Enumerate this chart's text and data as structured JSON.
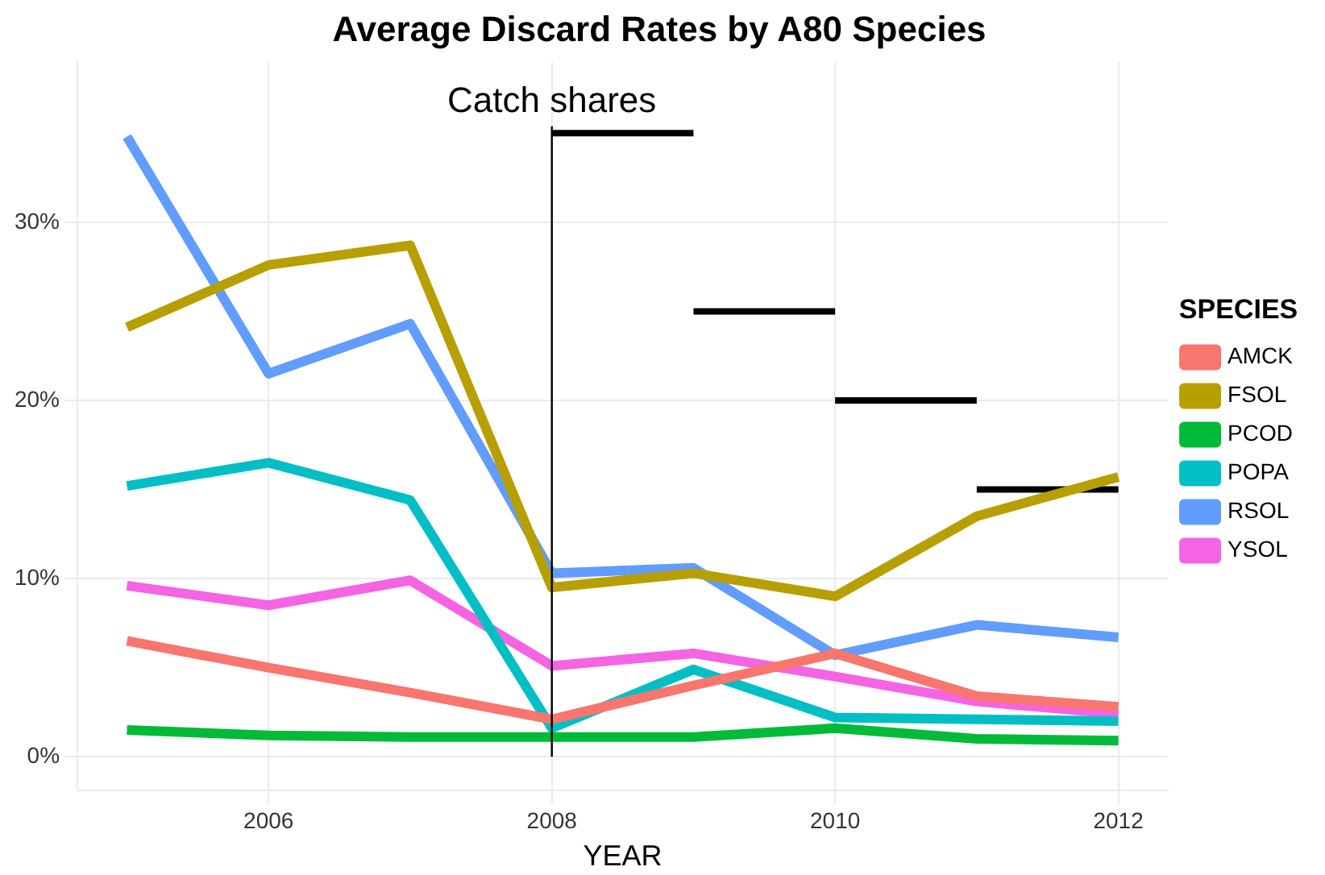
{
  "chart_data": {
    "type": "line",
    "title": "Average Discard Rates by A80 Species",
    "xlabel": "YEAR",
    "legend_title": "SPECIES",
    "x": [
      2005,
      2006,
      2007,
      2008,
      2009,
      2010,
      2011,
      2012
    ],
    "series": [
      {
        "name": "AMCK",
        "color": "#f8766d",
        "values": [
          6.5,
          5.0,
          3.6,
          2.1,
          4.0,
          5.8,
          3.4,
          2.8
        ]
      },
      {
        "name": "FSOL",
        "color": "#b79f00",
        "values": [
          24.1,
          27.6,
          28.7,
          9.5,
          10.3,
          9.0,
          13.5,
          15.7
        ]
      },
      {
        "name": "PCOD",
        "color": "#00ba38",
        "values": [
          1.5,
          1.2,
          1.1,
          1.1,
          1.1,
          1.6,
          1.0,
          0.9
        ]
      },
      {
        "name": "POPA",
        "color": "#00bfc4",
        "values": [
          15.2,
          16.5,
          14.4,
          1.6,
          4.9,
          2.2,
          2.1,
          2.0
        ]
      },
      {
        "name": "RSOL",
        "color": "#619cff",
        "values": [
          34.8,
          21.5,
          24.3,
          10.3,
          10.6,
          5.7,
          7.4,
          6.7
        ]
      },
      {
        "name": "YSOL",
        "color": "#f564e3",
        "values": [
          9.6,
          8.5,
          9.9,
          5.1,
          5.8,
          4.5,
          3.1,
          2.4
        ]
      },
      {
        "type": "line",
        "color": "#000000",
        "x": [
          2008,
          2009
        ],
        "values": [
          35,
          35
        ]
      },
      {
        "type": "line",
        "color": "#000000",
        "x": [
          2009,
          2010
        ],
        "values": [
          25,
          25
        ]
      },
      {
        "type": "line",
        "color": "#000000",
        "x": [
          2010,
          2011
        ],
        "values": [
          20,
          20
        ]
      },
      {
        "type": "line",
        "color": "#000000",
        "x": [
          2011,
          2012
        ],
        "values": [
          15,
          15
        ]
      }
    ],
    "xlim": [
      2004.65,
      2012.35
    ],
    "xticks": [
      2006,
      2008,
      2010,
      2012
    ],
    "ylim": [
      -1.9,
      39
    ],
    "yticks": [
      {
        "value": 0,
        "label": "0%"
      },
      {
        "value": 10,
        "label": "10%"
      },
      {
        "value": 20,
        "label": "20%"
      },
      {
        "value": 30,
        "label": "30%"
      }
    ],
    "ref_lines": [
      {
        "axis": "x",
        "value": 2008,
        "label": "Catch shares",
        "color": "#000000"
      }
    ],
    "grid": true,
    "legend": "right",
    "marker": "none",
    "line_style": "solid"
  }
}
